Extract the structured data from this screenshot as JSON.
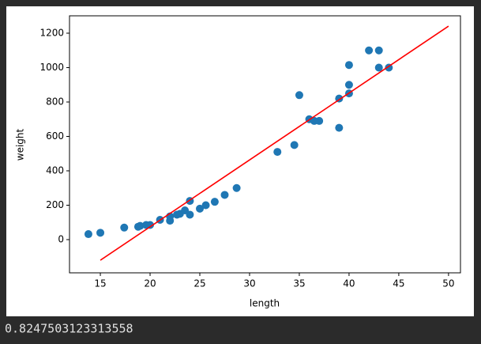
{
  "chart_data": {
    "type": "scatter",
    "xlabel": "length",
    "ylabel": "weight",
    "x": [
      13.8,
      15,
      17.4,
      18.8,
      19,
      19.6,
      20,
      21,
      22,
      22,
      22.7,
      23,
      23.5,
      24,
      24,
      25,
      25.6,
      26.5,
      27.5,
      28.7,
      32.8,
      34.5,
      35,
      36,
      36.5,
      37,
      39,
      39,
      40,
      40,
      40,
      42,
      43,
      43,
      44
    ],
    "values": [
      32,
      40,
      70,
      75,
      80,
      85,
      85,
      115,
      110,
      135,
      145,
      150,
      170,
      145,
      225,
      180,
      200,
      220,
      260,
      300,
      510,
      550,
      840,
      700,
      690,
      690,
      820,
      650,
      850,
      900,
      1015,
      1100,
      1100,
      1000,
      1000
    ],
    "color": "#1f77b4",
    "fit": {
      "type": "line",
      "x": [
        15,
        50
      ],
      "values": [
        -120,
        1241
      ],
      "color": "#ff0000"
    },
    "xlim": [
      11.9,
      51.2
    ],
    "ylim": [
      -193,
      1301
    ],
    "xticks": [
      15,
      20,
      25,
      30,
      35,
      40,
      45,
      50
    ],
    "yticks": [
      0,
      200,
      400,
      600,
      800,
      1000,
      1200
    ]
  },
  "output": "0.8247503123313558"
}
